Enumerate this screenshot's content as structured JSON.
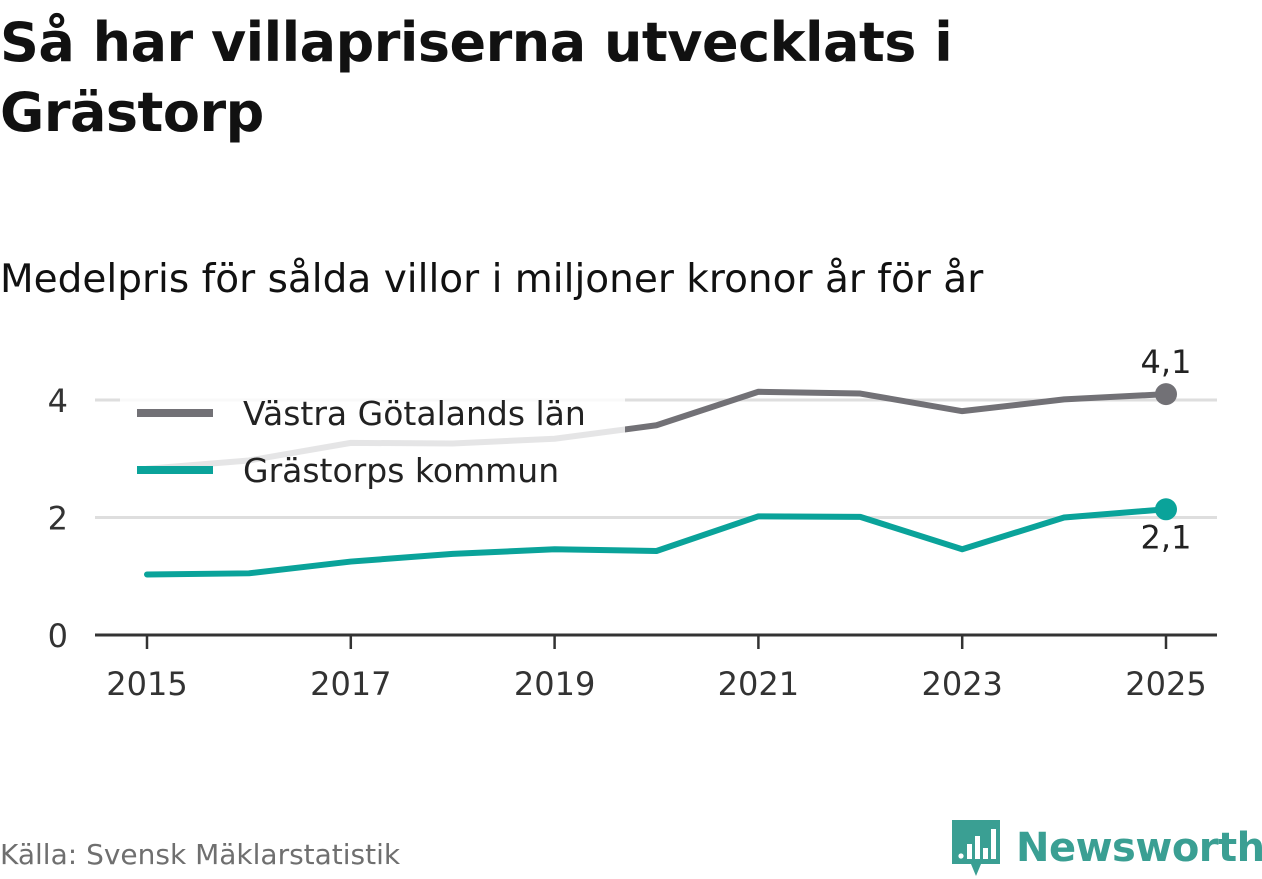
{
  "header": {
    "title": "Så har villapriserna utvecklats i Grästorp",
    "subtitle": "Medelpris för sålda villor i miljoner kronor år för år"
  },
  "footer": {
    "source": "Källa: Svensk Mäklarstatistik",
    "brand": "Newsworthy",
    "brand_color": "#3a9f93"
  },
  "chart_data": {
    "type": "line",
    "title": "Så har villapriserna utvecklats i Grästorp",
    "subtitle": "Medelpris för sålda villor i miljoner kronor år för år",
    "xlabel": "",
    "ylabel": "",
    "x": [
      2015,
      2016,
      2017,
      2018,
      2019,
      2020,
      2021,
      2022,
      2023,
      2024,
      2025
    ],
    "xticks": [
      "2015",
      "2017",
      "2019",
      "2021",
      "2023",
      "2025"
    ],
    "yticks": [
      "0",
      "2",
      "4"
    ],
    "ylim": [
      0,
      4.3
    ],
    "grid": true,
    "legend_position": "top-left",
    "series": [
      {
        "name": "Västra Götalands län",
        "color": "#727176",
        "values": [
          2.83,
          2.97,
          3.27,
          3.26,
          3.34,
          3.57,
          4.14,
          4.11,
          3.81,
          4.01,
          4.1
        ],
        "end_label": "4,1"
      },
      {
        "name": "Grästorps kommun",
        "color": "#0aa39a",
        "values": [
          1.03,
          1.05,
          1.25,
          1.38,
          1.46,
          1.43,
          2.02,
          2.01,
          1.46,
          2.0,
          2.14
        ],
        "end_label": "2,1"
      }
    ]
  }
}
